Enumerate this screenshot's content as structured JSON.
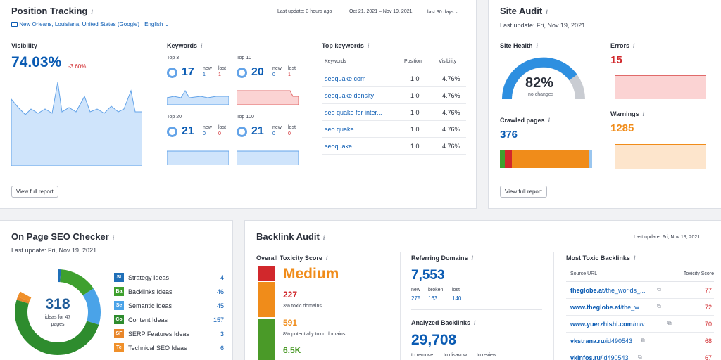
{
  "position_tracking": {
    "title": "Position Tracking",
    "last_update": "Last update: 3 hours ago",
    "date_range": "Oct 21, 2021 – Nov 19, 2021",
    "period": "last 30 days",
    "location": "New Orleans, Louisiana, United States (Google) · English",
    "visibility_label": "Visibility",
    "visibility_value": "74.03%",
    "visibility_change": "-3.60%",
    "keywords_label": "Keywords",
    "groups": [
      {
        "label": "Top 3",
        "value": "17",
        "new": "1",
        "lost": "1"
      },
      {
        "label": "Top 10",
        "value": "20",
        "new": "0",
        "lost": "1"
      },
      {
        "label": "Top 20",
        "value": "21",
        "new": "0",
        "lost": "0"
      },
      {
        "label": "Top 100",
        "value": "21",
        "new": "0",
        "lost": "0"
      }
    ],
    "new_label": "new",
    "lost_label": "lost",
    "top_keywords_label": "Top keywords",
    "columns": [
      "Keywords",
      "Position",
      "Visibility"
    ],
    "rows": [
      {
        "keyword": "seoquake com",
        "position": "1  0",
        "visibility": "4.76%"
      },
      {
        "keyword": "seoquake density",
        "position": "1  0",
        "visibility": "4.76%"
      },
      {
        "keyword": "seo quake for inter...",
        "position": "1  0",
        "visibility": "4.76%"
      },
      {
        "keyword": "seo quake",
        "position": "1  0",
        "visibility": "4.76%"
      },
      {
        "keyword": "seoquake",
        "position": "1  0",
        "visibility": "4.76%"
      }
    ],
    "view_full": "View full report"
  },
  "site_audit": {
    "title": "Site Audit",
    "last_update": "Last update: Fri, Nov 19, 2021",
    "health_label": "Site Health",
    "health_value": "82%",
    "health_note": "no changes",
    "errors_label": "Errors",
    "errors_value": "15",
    "crawled_label": "Crawled pages",
    "crawled_value": "376",
    "warnings_label": "Warnings",
    "warnings_value": "1285",
    "view_full": "View full report"
  },
  "on_page": {
    "title": "On Page SEO Checker",
    "last_update": "Last update: Fri, Nov 19, 2021",
    "total": "318",
    "total_note_1": "ideas for 47",
    "total_note_2": "pages",
    "ideas": [
      {
        "abbr": "St",
        "label": "Strategy Ideas",
        "count": "4",
        "color": "#1f6fb8"
      },
      {
        "abbr": "Ba",
        "label": "Backlinks Ideas",
        "count": "46",
        "color": "#3ea02e"
      },
      {
        "abbr": "Se",
        "label": "Semantic Ideas",
        "count": "45",
        "color": "#4aa3e8"
      },
      {
        "abbr": "Co",
        "label": "Content Ideas",
        "count": "157",
        "color": "#2e8c2e"
      },
      {
        "abbr": "SF",
        "label": "SERP Features Ideas",
        "count": "3",
        "color": "#e8862a"
      },
      {
        "abbr": "Te",
        "label": "Technical SEO Ideas",
        "count": "6",
        "color": "#f0902a"
      }
    ]
  },
  "backlink_audit": {
    "title": "Backlink Audit",
    "last_update": "Last update: Fri, Nov 19, 2021",
    "toxicity_label": "Overall Toxicity Score",
    "toxicity_level": "Medium",
    "toxic_count": "227",
    "toxic_note": "3% toxic domains",
    "potential_count": "591",
    "potential_note": "8% potentially toxic domains",
    "nontoxic_count": "6.5K",
    "referring_label": "Referring Domains",
    "referring_value": "7,553",
    "ref_cols": [
      "new",
      "broken",
      "lost"
    ],
    "ref_vals": [
      "275",
      "163",
      "140"
    ],
    "analyzed_label": "Analyzed Backlinks",
    "analyzed_value": "29,708",
    "analyzed_cols": [
      "to remove",
      "to disavow",
      "to review"
    ],
    "most_toxic_label": "Most Toxic Backlinks",
    "columns": [
      "Source URL",
      "Toxicity Score"
    ],
    "rows": [
      {
        "domain": "theglobe.at",
        "path": "/the_worlds_...",
        "score": "77"
      },
      {
        "domain": "www.theglobe.at",
        "path": "/the_w...",
        "score": "72"
      },
      {
        "domain": "www.yuerzhishi.com",
        "path": "/m/v...",
        "score": "70"
      },
      {
        "domain": "vkstrana.ru",
        "path": "/id490543",
        "score": "68"
      },
      {
        "domain": "vkinfos.ru",
        "path": "/id490543",
        "score": "67"
      }
    ]
  }
}
